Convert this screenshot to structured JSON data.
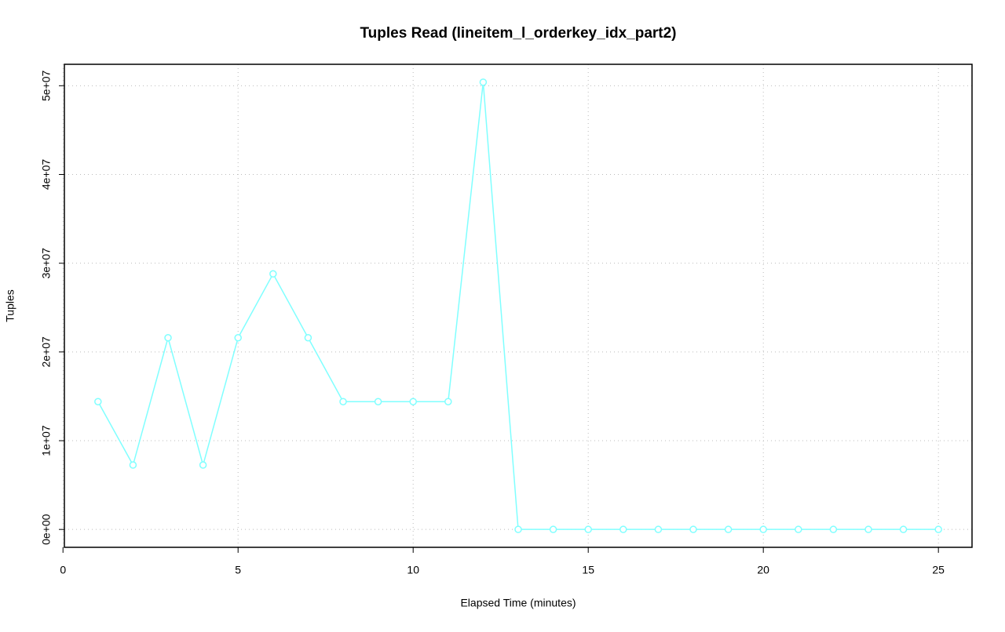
{
  "chart_data": {
    "type": "line",
    "title": "Tuples Read (lineitem_l_orderkey_idx_part2)",
    "x_label": "Elapsed Time (minutes)",
    "y_label": "Tuples",
    "x": [
      1,
      2,
      3,
      4,
      5,
      6,
      7,
      8,
      9,
      10,
      11,
      12,
      13,
      14,
      15,
      16,
      17,
      18,
      19,
      20,
      21,
      22,
      23,
      24,
      25
    ],
    "series": [
      {
        "color": "#80ffff",
        "values": [
          14400000,
          7260000,
          21600000,
          7260000,
          21600000,
          28800000,
          21600000,
          14400000,
          14400000,
          14400000,
          14400000,
          50400000,
          0,
          0,
          0,
          0,
          0,
          0,
          0,
          0,
          0,
          0,
          0,
          0,
          0
        ]
      }
    ],
    "xlim": [
      0.04,
      25.96
    ],
    "ylim": [
      -2016000,
      52416000
    ],
    "xticks": [
      0,
      5,
      10,
      15,
      20,
      25
    ],
    "yticks": [
      {
        "value": 0,
        "label": "0e+00"
      },
      {
        "value": 10000000,
        "label": "1e+07"
      },
      {
        "value": 20000000,
        "label": "2e+07"
      },
      {
        "value": 30000000,
        "label": "3e+07"
      },
      {
        "value": 40000000,
        "label": "4e+07"
      },
      {
        "value": 50000000,
        "label": "5e+07"
      }
    ],
    "grid": true
  }
}
